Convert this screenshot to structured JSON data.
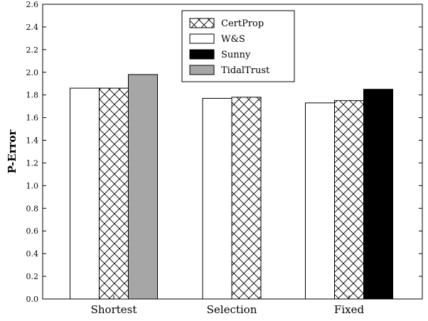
{
  "chart_data": {
    "type": "bar",
    "categories": [
      "Shortest",
      "Selection",
      "Fixed"
    ],
    "series": [
      {
        "name": "W&S",
        "values": [
          1.86,
          1.77,
          1.73
        ],
        "color": "#ffffff",
        "pattern": "none"
      },
      {
        "name": "CertProp",
        "values": [
          1.86,
          1.78,
          1.75
        ],
        "color": "#ffffff",
        "pattern": "crosshatch"
      },
      {
        "name": "Sunny",
        "values": [
          null,
          null,
          1.85
        ],
        "color": "#000000",
        "pattern": "none"
      },
      {
        "name": "TidalTrust",
        "values": [
          1.98,
          null,
          null
        ],
        "color": "#a6a6a6",
        "pattern": "none"
      }
    ],
    "legend_order": [
      "CertProp",
      "W&S",
      "Sunny",
      "TidalTrust"
    ],
    "title": "",
    "xlabel": "",
    "ylabel": "P-Error",
    "ylim": [
      0,
      2.6
    ],
    "yticks": [
      "0.0",
      "0.2",
      "0.4",
      "0.6",
      "0.8",
      "1.0",
      "1.2",
      "1.4",
      "1.6",
      "1.8",
      "2.0",
      "2.2",
      "2.4",
      "2.6"
    ],
    "grid": false,
    "legend_position": "top-center"
  }
}
